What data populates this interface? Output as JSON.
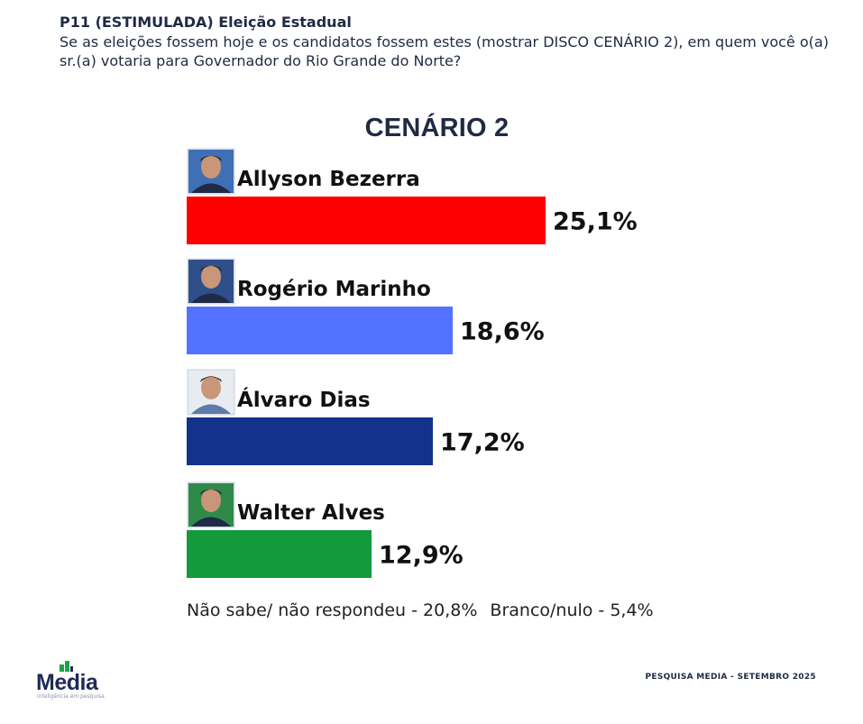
{
  "header": {
    "question_title": "P11 (ESTIMULADA) Eleição Estadual",
    "question_text": "Se as eleições fossem hoje e os candidatos fossem estes (mostrar DISCO CENÁRIO 2), em quem você o(a) sr.(a) votaria para Governador do Rio Grande do Norte?"
  },
  "chart_data": {
    "type": "bar",
    "orientation": "horizontal",
    "title": "CENÁRIO 2",
    "categories": [
      "Allyson Bezerra",
      "Rogério Marinho",
      "Álvaro Dias",
      "Walter Alves"
    ],
    "values": [
      25.1,
      18.6,
      17.2,
      12.9
    ],
    "value_labels": [
      "25,1%",
      "18,6%",
      "17,2%",
      "12,9%"
    ],
    "colors": [
      "#ff0000",
      "#5272ff",
      "#12328c",
      "#129a3c"
    ],
    "unit": "%",
    "xlim": [
      0,
      25.1
    ],
    "grid": false,
    "legend": "none",
    "candidate_photos": [
      "avatar-photo",
      "avatar-photo",
      "avatar-photo",
      "avatar-photo"
    ]
  },
  "footnote": {
    "dont_know": "Não sabe/ não respondeu - 20,8%",
    "blank_null": "Branco/nulo - 5,4%"
  },
  "brand": {
    "logo_text": "Media",
    "logo_tagline": "inteligência em pesquisa",
    "logo_colors": [
      "#1f2a55",
      "#1ea34a"
    ]
  },
  "source": "PESQUISA MEDIA - SETEMBRO 2025"
}
